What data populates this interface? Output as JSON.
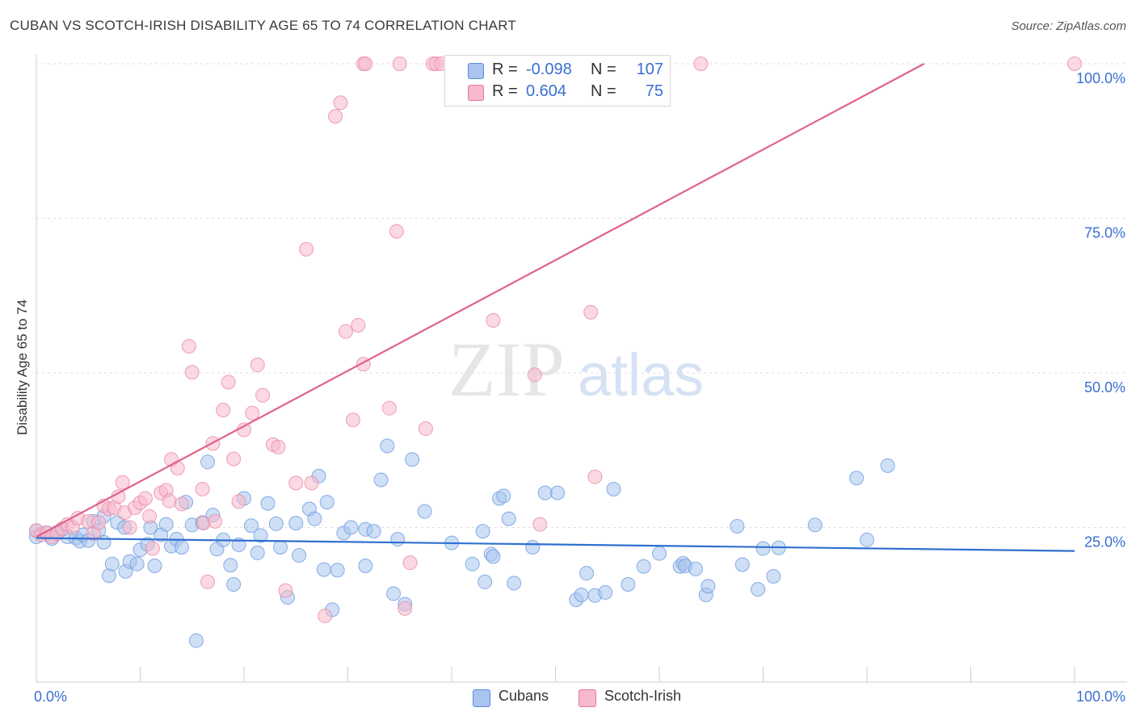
{
  "title": "CUBAN VS SCOTCH-IRISH DISABILITY AGE 65 TO 74 CORRELATION CHART",
  "source": "Source: ZipAtlas.com",
  "watermark": {
    "zip": "ZIP",
    "atlas": "atlas"
  },
  "legend_box": {
    "rows": [
      {
        "r_label": "R =",
        "r_value": "-0.098",
        "n_label": "N =",
        "n_value": "107",
        "color": "#a8c4ef",
        "stroke": "#5b8dd8"
      },
      {
        "r_label": "R =",
        "r_value": "0.604",
        "n_label": "N =",
        "n_value": "75",
        "color": "#f7b8cb",
        "stroke": "#e07a9a"
      }
    ]
  },
  "bottom_legend": [
    {
      "label": "Cubans",
      "color": "#a8c4ef",
      "stroke": "#5b8dd8"
    },
    {
      "label": "Scotch-Irish",
      "color": "#f7b8cb",
      "stroke": "#e07a9a"
    }
  ],
  "chart_data": {
    "type": "scatter",
    "title": "CUBAN VS SCOTCH-IRISH DISABILITY AGE 65 TO 74 CORRELATION CHART",
    "xlabel": "",
    "ylabel": "Disability Age 65 to 74",
    "xlim": [
      0,
      100
    ],
    "ylim": [
      0,
      100
    ],
    "x_tick_labels": [
      "0.0%",
      "100.0%"
    ],
    "y_tick_labels": [
      "25.0%",
      "50.0%",
      "75.0%",
      "100.0%"
    ],
    "y_gridlines": [
      25,
      50,
      75,
      100
    ],
    "legend_position": "top-center",
    "series": [
      {
        "name": "Cubans",
        "color": "#6b9be0",
        "fill": "#a8c4ef",
        "trend": {
          "x": [
            0,
            100
          ],
          "y": [
            23.3,
            21.2
          ],
          "color": "#2f6fd0"
        },
        "points": [
          [
            0,
            23.5
          ],
          [
            0,
            24.5
          ],
          [
            1,
            24
          ],
          [
            1.5,
            23.2
          ],
          [
            2,
            24.2
          ],
          [
            2.5,
            24.7
          ],
          [
            3,
            23.5
          ],
          [
            3.8,
            23.3
          ],
          [
            4.2,
            22.8
          ],
          [
            4.5,
            23.8
          ],
          [
            5,
            22.9
          ],
          [
            5.5,
            26
          ],
          [
            6,
            24.5
          ],
          [
            6.5,
            22.6
          ],
          [
            6.5,
            26.8
          ],
          [
            7,
            17.2
          ],
          [
            7.3,
            19.1
          ],
          [
            7.8,
            25.8
          ],
          [
            8.5,
            25
          ],
          [
            8.6,
            17.9
          ],
          [
            9,
            19.5
          ],
          [
            9.7,
            19.1
          ],
          [
            10,
            21.4
          ],
          [
            10.7,
            22.3
          ],
          [
            11,
            25
          ],
          [
            11.4,
            18.8
          ],
          [
            12,
            23.8
          ],
          [
            12.5,
            25.5
          ],
          [
            13,
            22
          ],
          [
            13.5,
            23.1
          ],
          [
            14,
            21.8
          ],
          [
            14.4,
            29.1
          ],
          [
            15,
            25.4
          ],
          [
            15.4,
            6.7
          ],
          [
            16,
            25.8
          ],
          [
            16.5,
            35.6
          ],
          [
            17,
            27
          ],
          [
            17.4,
            21.5
          ],
          [
            18,
            23
          ],
          [
            18.7,
            18.9
          ],
          [
            19,
            15.8
          ],
          [
            19.5,
            22.2
          ],
          [
            20,
            29.7
          ],
          [
            20.7,
            25.3
          ],
          [
            21.3,
            20.9
          ],
          [
            21.6,
            23.7
          ],
          [
            22.3,
            28.9
          ],
          [
            23.1,
            25.6
          ],
          [
            23.5,
            21.8
          ],
          [
            24.2,
            13.7
          ],
          [
            25,
            25.7
          ],
          [
            25.3,
            20.5
          ],
          [
            26.3,
            28
          ],
          [
            26.8,
            26.4
          ],
          [
            27.2,
            33.3
          ],
          [
            27.7,
            18.2
          ],
          [
            28,
            29.1
          ],
          [
            28.5,
            11.7
          ],
          [
            29,
            18.1
          ],
          [
            29.6,
            24.1
          ],
          [
            30.3,
            25
          ],
          [
            31.7,
            18.8
          ],
          [
            31.7,
            24.7
          ],
          [
            32.5,
            24.4
          ],
          [
            33.2,
            32.7
          ],
          [
            33.8,
            38.2
          ],
          [
            34.4,
            14.3
          ],
          [
            34.8,
            23.1
          ],
          [
            35.5,
            12.6
          ],
          [
            36.2,
            36
          ],
          [
            37.4,
            27.6
          ],
          [
            40,
            22.5
          ],
          [
            42,
            19.1
          ],
          [
            43,
            24.4
          ],
          [
            43.2,
            16.2
          ],
          [
            43.8,
            20.7
          ],
          [
            44,
            20.3
          ],
          [
            44.6,
            29.7
          ],
          [
            45,
            30.1
          ],
          [
            45.5,
            26.4
          ],
          [
            46,
            16
          ],
          [
            47.8,
            21.8
          ],
          [
            49,
            30.6
          ],
          [
            50.2,
            30.6
          ],
          [
            52,
            13.3
          ],
          [
            52.5,
            14.1
          ],
          [
            53,
            17.6
          ],
          [
            53.8,
            14
          ],
          [
            54.8,
            14.5
          ],
          [
            55.6,
            31.2
          ],
          [
            57,
            15.8
          ],
          [
            58.5,
            18.7
          ],
          [
            60,
            20.8
          ],
          [
            62,
            18.7
          ],
          [
            62.3,
            19.2
          ],
          [
            62.5,
            18.8
          ],
          [
            63.5,
            18.3
          ],
          [
            64.5,
            14.1
          ],
          [
            64.7,
            15.5
          ],
          [
            67.5,
            25.2
          ],
          [
            68,
            19
          ],
          [
            69.5,
            15
          ],
          [
            70,
            21.6
          ],
          [
            71,
            17.1
          ],
          [
            71.5,
            21.7
          ],
          [
            75,
            25.4
          ],
          [
            79,
            33
          ],
          [
            80,
            23
          ],
          [
            82,
            35
          ]
        ]
      },
      {
        "name": "Scotch-Irish",
        "color": "#e98aa8",
        "fill": "#f7b8cb",
        "trend": {
          "x": [
            0,
            85.5
          ],
          "y": [
            23.5,
            100
          ],
          "color": "#e0628a"
        },
        "points": [
          [
            0,
            24.5
          ],
          [
            0.5,
            23.8
          ],
          [
            1,
            24.2
          ],
          [
            1.5,
            23.5
          ],
          [
            2,
            24
          ],
          [
            2.5,
            24.8
          ],
          [
            3,
            25.5
          ],
          [
            3.5,
            25
          ],
          [
            4,
            26.5
          ],
          [
            5,
            26
          ],
          [
            5.5,
            24
          ],
          [
            6,
            25.8
          ],
          [
            6.5,
            28.5
          ],
          [
            7,
            28
          ],
          [
            7.5,
            28.2
          ],
          [
            7.9,
            30
          ],
          [
            8.3,
            32.3
          ],
          [
            8.5,
            27.4
          ],
          [
            9,
            25
          ],
          [
            9.5,
            28.2
          ],
          [
            10,
            29
          ],
          [
            10.5,
            29.7
          ],
          [
            10.9,
            26.8
          ],
          [
            11.2,
            21.6
          ],
          [
            12,
            30.6
          ],
          [
            12.5,
            31
          ],
          [
            12.8,
            29.3
          ],
          [
            13,
            36
          ],
          [
            13.6,
            34.6
          ],
          [
            14,
            28.8
          ],
          [
            14.7,
            54.3
          ],
          [
            15,
            50.1
          ],
          [
            16,
            31.2
          ],
          [
            16.1,
            25.7
          ],
          [
            16.5,
            16.2
          ],
          [
            17,
            38.6
          ],
          [
            17.2,
            26
          ],
          [
            18,
            44
          ],
          [
            18.5,
            48.5
          ],
          [
            19,
            36.1
          ],
          [
            19.5,
            29.2
          ],
          [
            20,
            40.8
          ],
          [
            20.8,
            43.5
          ],
          [
            21.3,
            51.3
          ],
          [
            21.8,
            46.4
          ],
          [
            22.8,
            38.4
          ],
          [
            23.3,
            38
          ],
          [
            24,
            14.8
          ],
          [
            25,
            32.2
          ],
          [
            26,
            70
          ],
          [
            26.5,
            32.2
          ],
          [
            27.8,
            10.7
          ],
          [
            28.8,
            91.5
          ],
          [
            29.3,
            93.7
          ],
          [
            29.8,
            56.7
          ],
          [
            30.5,
            42.4
          ],
          [
            31,
            57.7
          ],
          [
            31.5,
            51.4
          ],
          [
            31.5,
            100
          ],
          [
            31.7,
            100
          ],
          [
            34,
            44.3
          ],
          [
            34.7,
            72.9
          ],
          [
            35,
            100
          ],
          [
            35.5,
            11.9
          ],
          [
            36,
            19.3
          ],
          [
            37.5,
            41
          ],
          [
            38.2,
            100
          ],
          [
            38.5,
            100
          ],
          [
            39,
            100
          ],
          [
            44,
            58.5
          ],
          [
            48,
            49.7
          ],
          [
            48.5,
            25.5
          ],
          [
            53.4,
            59.8
          ],
          [
            53.8,
            33.2
          ],
          [
            64,
            100
          ],
          [
            100,
            100
          ]
        ]
      }
    ]
  }
}
